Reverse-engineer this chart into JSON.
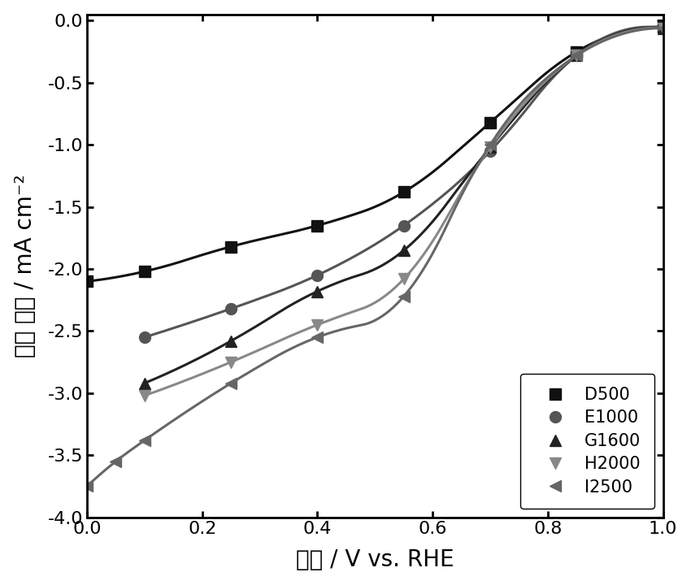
{
  "title": "",
  "xlabel": "电压 / V vs. RHE",
  "ylabel": "电流 密度 / mA cm⁻²",
  "xlim": [
    0.0,
    1.0
  ],
  "ylim": [
    -4.0,
    0.05
  ],
  "xticks": [
    0.0,
    0.2,
    0.4,
    0.6,
    0.8,
    1.0
  ],
  "yticks": [
    0.0,
    -0.5,
    -1.0,
    -1.5,
    -2.0,
    -2.5,
    -3.0,
    -3.5,
    -4.0
  ],
  "series": [
    {
      "label": "D500",
      "color": "#111111",
      "marker": "s",
      "markersize": 10,
      "linewidth": 2.2,
      "x": [
        0.0,
        0.1,
        0.25,
        0.4,
        0.55,
        0.7,
        0.85,
        1.0
      ],
      "y": [
        -2.1,
        -2.02,
        -1.82,
        -1.65,
        -1.38,
        -0.82,
        -0.25,
        -0.05
      ]
    },
    {
      "label": "E1000",
      "color": "#555555",
      "marker": "o",
      "markersize": 10,
      "linewidth": 2.2,
      "x": [
        0.1,
        0.25,
        0.4,
        0.55,
        0.7,
        0.85,
        1.0
      ],
      "y": [
        -2.55,
        -2.32,
        -2.05,
        -1.65,
        -1.05,
        -0.28,
        -0.06
      ]
    },
    {
      "label": "G1600",
      "color": "#222222",
      "marker": "^",
      "markersize": 10,
      "linewidth": 2.2,
      "x": [
        0.1,
        0.25,
        0.4,
        0.55,
        0.7,
        0.85,
        1.0
      ],
      "y": [
        -2.92,
        -2.58,
        -2.18,
        -1.85,
        -1.02,
        -0.28,
        -0.06
      ]
    },
    {
      "label": "H2000",
      "color": "#888888",
      "marker": "v",
      "markersize": 10,
      "linewidth": 2.2,
      "x": [
        0.1,
        0.25,
        0.4,
        0.55,
        0.7,
        0.85,
        1.0
      ],
      "y": [
        -3.02,
        -2.75,
        -2.45,
        -2.08,
        -1.02,
        -0.28,
        -0.06
      ]
    },
    {
      "label": "I2500",
      "color": "#666666",
      "marker": "<",
      "markersize": 10,
      "linewidth": 2.2,
      "x": [
        0.0,
        0.05,
        0.1,
        0.25,
        0.4,
        0.55,
        0.7,
        0.85,
        1.0
      ],
      "y": [
        -3.75,
        -3.55,
        -3.38,
        -2.92,
        -2.55,
        -2.22,
        -1.0,
        -0.28,
        -0.06
      ]
    }
  ],
  "background_color": "#ffffff",
  "legend_loc": "lower right",
  "legend_fontsize": 15,
  "tick_fontsize": 16,
  "label_fontsize": 20,
  "figure_width": 8.5,
  "figure_height": 7.2
}
